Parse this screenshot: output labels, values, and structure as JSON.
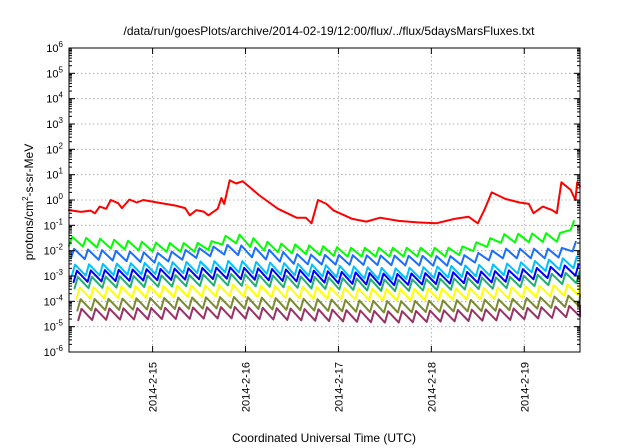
{
  "chart_data": {
    "type": "line",
    "title": "/data/run/goesPlots/archive/2014-02-19/12:00/flux/../flux/5daysMarsFluxes.txt",
    "xlabel": "Coordinated Universal Time (UTC)",
    "ylabel": {
      "base": "protons/cm",
      "sup": "2",
      "rest": "-s-sr-MeV"
    },
    "yscale": "log",
    "ylim_exp": [
      -6,
      6
    ],
    "y_tick_base": "10",
    "y_tick_exponents": [
      "-6",
      "-5",
      "-4",
      "-3",
      "-2",
      "-1",
      "0",
      "1",
      "2",
      "3",
      "4",
      "5",
      "6"
    ],
    "xlim_days": [
      14.05,
      19.55
    ],
    "x_ticks": [
      {
        "label": "2014-2-15",
        "day": 14.95
      },
      {
        "label": "2014-2-16",
        "day": 15.95
      },
      {
        "label": "2014-2-17",
        "day": 16.95
      },
      {
        "label": "2014-2-18",
        "day": 17.95
      },
      {
        "label": "2014-2-19",
        "day": 18.95
      }
    ],
    "grid": true,
    "legend": "none",
    "series": [
      {
        "color": "#ff0000",
        "points": [
          [
            14.05,
            0.4
          ],
          [
            14.18,
            0.34
          ],
          [
            14.28,
            0.38
          ],
          [
            14.33,
            0.3
          ],
          [
            14.38,
            0.55
          ],
          [
            14.45,
            0.45
          ],
          [
            14.5,
            1.0
          ],
          [
            14.58,
            0.75
          ],
          [
            14.62,
            0.48
          ],
          [
            14.7,
            1.05
          ],
          [
            14.78,
            0.8
          ],
          [
            14.85,
            1.0
          ],
          [
            15.0,
            0.8
          ],
          [
            15.2,
            0.6
          ],
          [
            15.3,
            0.48
          ],
          [
            15.35,
            0.25
          ],
          [
            15.42,
            0.4
          ],
          [
            15.5,
            0.35
          ],
          [
            15.55,
            0.25
          ],
          [
            15.65,
            0.45
          ],
          [
            15.69,
            1.2
          ],
          [
            15.72,
            0.7
          ],
          [
            15.78,
            6.0
          ],
          [
            15.85,
            4.5
          ],
          [
            15.92,
            5.5
          ],
          [
            16.1,
            1.5
          ],
          [
            16.3,
            0.45
          ],
          [
            16.5,
            0.2
          ],
          [
            16.6,
            0.2
          ],
          [
            16.66,
            0.12
          ],
          [
            16.73,
            1.0
          ],
          [
            16.82,
            0.7
          ],
          [
            16.9,
            0.38
          ],
          [
            17.1,
            0.18
          ],
          [
            17.25,
            0.14
          ],
          [
            17.4,
            0.2
          ],
          [
            17.6,
            0.15
          ],
          [
            17.8,
            0.13
          ],
          [
            18.0,
            0.12
          ],
          [
            18.2,
            0.18
          ],
          [
            18.35,
            0.22
          ],
          [
            18.45,
            0.12
          ],
          [
            18.52,
            0.4
          ],
          [
            18.6,
            2.0
          ],
          [
            18.75,
            1.1
          ],
          [
            18.9,
            0.8
          ],
          [
            19.0,
            0.7
          ],
          [
            19.05,
            0.3
          ],
          [
            19.15,
            0.55
          ],
          [
            19.25,
            0.4
          ],
          [
            19.3,
            0.3
          ],
          [
            19.35,
            5.0
          ],
          [
            19.45,
            2.5
          ],
          [
            19.5,
            1.0
          ],
          [
            19.52,
            5.0
          ],
          [
            19.55,
            3.5
          ]
        ]
      },
      {
        "color": "#00ff00",
        "base": 0.022,
        "amp": 0.025,
        "ramps": [
          [
            14.05,
            0.035
          ],
          [
            15.0,
            0.02
          ],
          [
            15.5,
            0.02
          ],
          [
            15.78,
            0.05
          ],
          [
            16.2,
            0.02
          ],
          [
            17.0,
            0.013
          ],
          [
            18.2,
            0.013
          ],
          [
            18.7,
            0.045
          ],
          [
            19.3,
            0.05
          ],
          [
            19.55,
            0.3
          ]
        ],
        "phase": 0.0
      },
      {
        "color": "#1a6fff",
        "base": 0.008,
        "ramps": [
          [
            14.05,
            0.012
          ],
          [
            15.0,
            0.008
          ],
          [
            15.78,
            0.018
          ],
          [
            16.5,
            0.007
          ],
          [
            18.2,
            0.006
          ],
          [
            18.7,
            0.012
          ],
          [
            19.3,
            0.012
          ],
          [
            19.55,
            0.03
          ]
        ],
        "phase": 0.02
      },
      {
        "color": "#00c0ff",
        "ramps": [
          [
            14.05,
            0.0028
          ],
          [
            15.78,
            0.004
          ],
          [
            17.5,
            0.002
          ],
          [
            18.7,
            0.003
          ],
          [
            19.55,
            0.006
          ]
        ],
        "phase": 0.03
      },
      {
        "color": "#0000ff",
        "ramps": [
          [
            14.05,
            0.0016
          ],
          [
            15.78,
            0.0022
          ],
          [
            17.5,
            0.0012
          ],
          [
            18.7,
            0.0016
          ],
          [
            19.55,
            0.003
          ]
        ],
        "phase": 0.05
      },
      {
        "color": "#20b070",
        "ramps": [
          [
            14.05,
            0.0009
          ],
          [
            15.78,
            0.0012
          ],
          [
            17.5,
            0.0007
          ],
          [
            18.7,
            0.0009
          ],
          [
            19.55,
            0.0015
          ]
        ],
        "phase": 0.06
      },
      {
        "color": "#ffff00",
        "ramps": [
          [
            14.05,
            0.00035
          ],
          [
            15.78,
            0.00045
          ],
          [
            17.5,
            0.0003
          ],
          [
            18.7,
            0.00035
          ],
          [
            19.55,
            0.0005
          ]
        ],
        "phase": 0.08
      },
      {
        "color": "#7a8a30",
        "ramps": [
          [
            14.05,
            0.00012
          ],
          [
            15.78,
            0.00015
          ],
          [
            17.5,
            0.0001
          ],
          [
            18.7,
            0.00012
          ],
          [
            19.55,
            0.00018
          ]
        ],
        "phase": 0.09
      },
      {
        "color": "#993366",
        "ramps": [
          [
            14.05,
            5e-05
          ],
          [
            15.78,
            6e-05
          ],
          [
            17.5,
            4e-05
          ],
          [
            18.7,
            5e-05
          ],
          [
            19.55,
            7e-05
          ]
        ],
        "phase": 0.1
      }
    ]
  }
}
